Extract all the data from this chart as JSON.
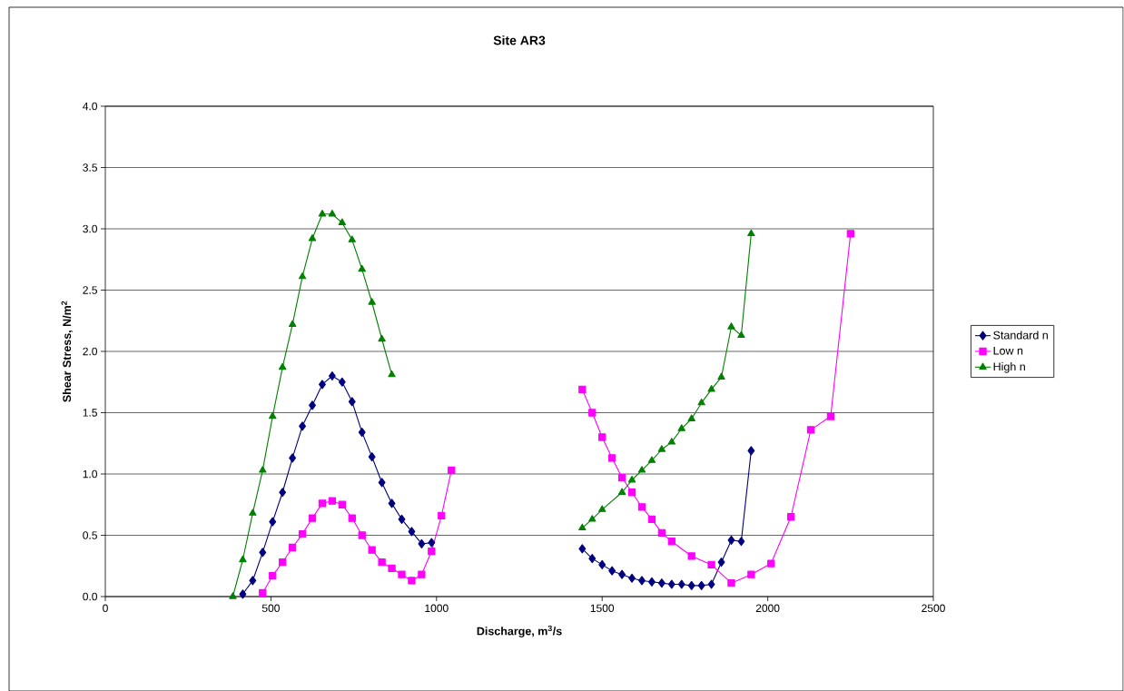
{
  "chart_data": {
    "type": "line",
    "title": "Site AR3",
    "xlabel": "Discharge, m$^{3}$/s",
    "ylabel": "Shear Stress, N/m$^{2}$",
    "xlim": [
      0,
      2500
    ],
    "xticks": [
      0,
      500,
      1000,
      1500,
      2000,
      2500
    ],
    "ylim": [
      0,
      4.0
    ],
    "yticks": [
      {
        "value": 0,
        "label": "0.0"
      },
      {
        "value": 0.5,
        "label": "0.5"
      },
      {
        "value": 1.0,
        "label": "1.0"
      },
      {
        "value": 1.5,
        "label": "1.5"
      },
      {
        "value": 2.0,
        "label": "2.0"
      },
      {
        "value": 2.5,
        "label": "2.5"
      },
      {
        "value": 3.0,
        "label": "3.0"
      },
      {
        "value": 3.5,
        "label": "3.5"
      },
      {
        "value": 4.0,
        "label": "4.0"
      }
    ],
    "grid": "y",
    "legend": "right",
    "series": [
      {
        "name": "Standard n",
        "color": "#000080",
        "marker": "diamond",
        "x": [
          415,
          445,
          475,
          505,
          535,
          565,
          595,
          625,
          655,
          685,
          715,
          745,
          775,
          805,
          835,
          865,
          895,
          925,
          955,
          985,
          null,
          1440,
          1470,
          1500,
          1530,
          1560,
          1590,
          1620,
          1650,
          1680,
          1710,
          1740,
          1770,
          1800,
          1830,
          1860,
          1890,
          1920,
          1950
        ],
        "values": [
          0.02,
          0.13,
          0.36,
          0.61,
          0.85,
          1.13,
          1.39,
          1.56,
          1.73,
          1.8,
          1.75,
          1.59,
          1.34,
          1.14,
          0.93,
          0.76,
          0.63,
          0.53,
          0.43,
          0.44,
          null,
          0.39,
          0.31,
          0.26,
          0.21,
          0.18,
          0.15,
          0.13,
          0.12,
          0.11,
          0.1,
          0.1,
          0.09,
          0.09,
          0.1,
          0.28,
          0.46,
          0.45,
          1.19
        ]
      },
      {
        "name": "Low n",
        "color": "#ff00ff",
        "marker": "square",
        "x": [
          475,
          505,
          535,
          565,
          595,
          625,
          655,
          685,
          715,
          745,
          775,
          805,
          835,
          865,
          895,
          925,
          955,
          985,
          1015,
          1045,
          null,
          1440,
          1470,
          1500,
          1530,
          1560,
          1590,
          1620,
          1650,
          1680,
          1710,
          1770,
          1830,
          1890,
          1950,
          2010,
          2070,
          2130,
          2190,
          2250
        ],
        "values": [
          0.03,
          0.17,
          0.28,
          0.4,
          0.51,
          0.64,
          0.76,
          0.78,
          0.75,
          0.64,
          0.5,
          0.38,
          0.28,
          0.23,
          0.18,
          0.13,
          0.18,
          0.37,
          0.66,
          1.03,
          null,
          1.69,
          1.5,
          1.3,
          1.13,
          0.97,
          0.85,
          0.73,
          0.63,
          0.52,
          0.45,
          0.33,
          0.26,
          0.11,
          0.18,
          0.27,
          0.65,
          1.36,
          1.47,
          2.96
        ]
      },
      {
        "name": "High n",
        "color": "#008000",
        "marker": "triangle",
        "x": [
          385,
          415,
          445,
          475,
          505,
          535,
          565,
          595,
          625,
          655,
          685,
          715,
          745,
          775,
          805,
          835,
          865,
          null,
          1440,
          1470,
          1500,
          1560,
          1590,
          1620,
          1650,
          1680,
          1710,
          1740,
          1770,
          1800,
          1830,
          1860,
          1890,
          1920,
          1950
        ],
        "values": [
          0.0,
          0.3,
          0.68,
          1.03,
          1.47,
          1.87,
          2.22,
          2.61,
          2.92,
          3.12,
          3.12,
          3.05,
          2.91,
          2.67,
          2.4,
          2.1,
          1.81,
          null,
          0.56,
          0.63,
          0.71,
          0.85,
          0.95,
          1.03,
          1.11,
          1.2,
          1.26,
          1.37,
          1.45,
          1.58,
          1.69,
          1.79,
          2.2,
          2.13,
          2.96
        ]
      }
    ]
  }
}
